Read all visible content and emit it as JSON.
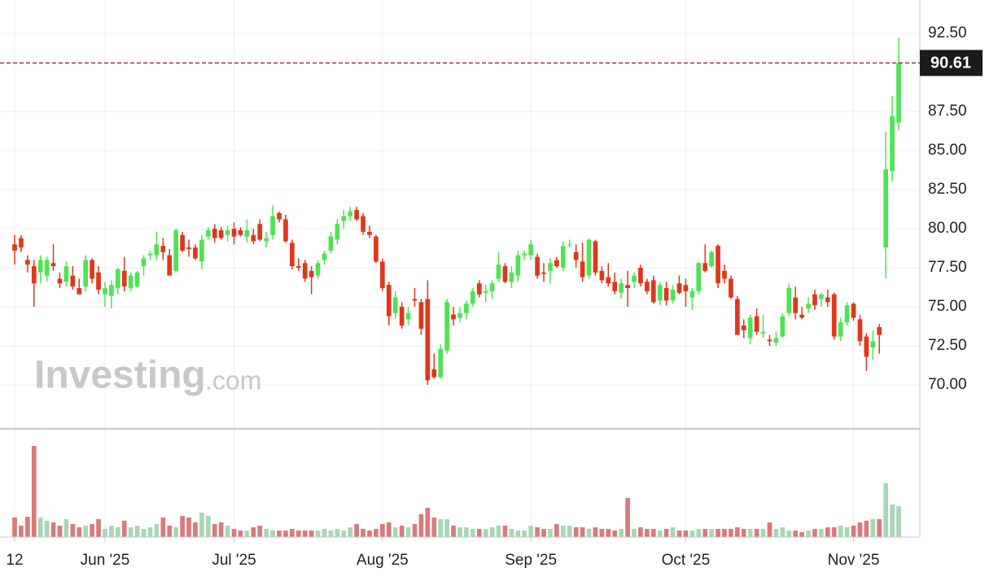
{
  "chart_data": {
    "type": "candlestick",
    "watermark": [
      "Investing",
      ".com"
    ],
    "open": [
      79.0,
      79.4,
      78.0,
      77.6,
      77.2,
      77.0,
      77.8,
      76.8,
      76.6,
      77.0,
      76.2,
      76.3,
      78.0,
      77.2,
      75.8,
      75.7,
      76.2,
      77.3,
      76.2,
      76.3,
      77.6,
      78.3,
      78.3,
      78.9,
      78.3,
      77.3,
      79.6,
      78.8,
      78.8,
      77.9,
      79.5,
      80.0,
      79.9,
      79.6,
      80.0,
      79.9,
      79.5,
      79.6,
      80.3,
      79.2,
      79.6,
      81.0,
      80.6,
      79.1,
      77.6,
      77.8,
      77.3,
      77.0,
      78.0,
      78.6,
      79.3,
      80.5,
      80.8,
      81.2,
      80.8,
      79.8,
      79.5,
      77.9,
      76.4,
      74.6,
      75.0,
      74.2,
      75.5,
      75.3,
      75.5,
      71.0,
      70.5,
      72.2,
      74.5,
      74.3,
      74.6,
      75.2,
      76.5,
      75.9,
      76.0,
      76.8,
      77.6,
      76.6,
      77.0,
      78.3,
      78.3,
      78.2,
      77.2,
      77.3,
      78.0,
      77.5,
      79.0,
      78.5,
      77.9,
      77.0,
      79.2,
      77.3,
      76.9,
      76.6,
      75.9,
      76.4,
      76.6,
      77.5,
      76.6,
      76.7,
      75.4,
      76.2,
      75.4,
      76.5,
      76.4,
      75.6,
      76.0,
      77.8,
      77.6,
      78.9,
      77.3,
      76.8,
      75.5,
      73.8,
      73.0,
      74.4,
      73.3,
      72.9,
      72.7,
      73.1,
      74.6,
      75.6,
      74.5,
      74.9,
      75.8,
      75.5,
      75.6,
      75.8,
      73.1,
      74.0,
      75.2,
      74.2,
      73.1,
      72.4,
      73.7,
      78.8,
      83.7,
      86.8
    ],
    "high": [
      79.6,
      79.6,
      78.3,
      78.0,
      78.3,
      78.2,
      79.0,
      77.2,
      77.9,
      77.6,
      76.8,
      78.3,
      78.1,
      77.6,
      76.6,
      76.7,
      77.5,
      78.2,
      77.2,
      77.3,
      78.3,
      78.6,
      79.8,
      79.4,
      78.7,
      80.0,
      79.8,
      79.3,
      79.0,
      79.6,
      80.1,
      80.3,
      80.1,
      80.2,
      80.4,
      80.1,
      80.6,
      80.0,
      80.6,
      79.8,
      81.5,
      81.1,
      80.9,
      79.3,
      78.1,
      78.0,
      77.6,
      78.0,
      78.6,
      79.8,
      80.6,
      81.2,
      81.4,
      81.4,
      81.0,
      80.2,
      79.6,
      78.1,
      76.6,
      76.0,
      75.3,
      75.0,
      76.2,
      75.5,
      76.7,
      72.0,
      72.6,
      75.5,
      75.0,
      75.0,
      75.4,
      76.2,
      76.7,
      76.4,
      76.7,
      78.5,
      77.8,
      77.6,
      78.6,
      78.6,
      79.3,
      78.4,
      77.8,
      78.1,
      78.2,
      79.2,
      79.3,
      79.0,
      79.1,
      79.4,
      79.3,
      77.6,
      77.8,
      77.2,
      76.8,
      77.3,
      77.2,
      77.7,
      76.8,
      77.0,
      76.6,
      76.6,
      76.4,
      77.0,
      76.8,
      76.2,
      77.9,
      79.0,
      78.6,
      79.0,
      77.7,
      77.0,
      75.7,
      74.2,
      74.5,
      74.9,
      74.5,
      73.2,
      73.4,
      74.6,
      76.5,
      76.3,
      75.0,
      75.6,
      76.1,
      75.9,
      76.1,
      75.9,
      74.3,
      75.3,
      75.3,
      74.5,
      73.3,
      73.5,
      73.9,
      86.2,
      88.5,
      92.2
    ],
    "low": [
      77.7,
      78.5,
      77.2,
      75.0,
      76.5,
      76.6,
      77.3,
      76.2,
      76.3,
      76.1,
      75.8,
      76.0,
      76.5,
      75.8,
      75.0,
      74.9,
      75.8,
      76.0,
      76.0,
      76.2,
      77.0,
      78.0,
      78.0,
      78.0,
      77.0,
      77.2,
      78.5,
      78.2,
      78.0,
      77.4,
      79.3,
      79.1,
      79.3,
      79.2,
      79.0,
      79.5,
      79.1,
      79.0,
      79.2,
      78.8,
      79.3,
      80.4,
      79.1,
      77.4,
      77.3,
      76.6,
      75.8,
      76.8,
      77.7,
      78.4,
      79.0,
      80.0,
      80.5,
      80.5,
      79.6,
      79.4,
      77.8,
      76.0,
      73.8,
      74.2,
      73.6,
      73.8,
      75.0,
      73.2,
      70.0,
      70.4,
      70.4,
      72.0,
      73.8,
      74.0,
      74.2,
      75.0,
      75.6,
      75.3,
      75.5,
      76.6,
      76.5,
      76.2,
      76.6,
      78.0,
      78.0,
      76.8,
      76.6,
      76.5,
      77.5,
      77.3,
      78.8,
      77.5,
      76.6,
      76.8,
      77.0,
      76.5,
      76.3,
      75.8,
      75.5,
      75.0,
      76.2,
      76.3,
      75.8,
      75.2,
      75.1,
      75.1,
      75.2,
      75.8,
      75.0,
      74.8,
      75.8,
      77.2,
      77.5,
      76.2,
      76.5,
      75.5,
      73.2,
      73.0,
      72.6,
      73.2,
      73.0,
      72.5,
      72.5,
      73.0,
      74.4,
      74.2,
      74.2,
      74.6,
      74.8,
      75.0,
      75.0,
      72.9,
      72.8,
      73.8,
      74.1,
      72.5,
      70.9,
      71.6,
      72.0,
      76.8,
      83.0,
      86.3
    ],
    "close": [
      78.6,
      78.8,
      77.7,
      76.5,
      78.0,
      78.0,
      77.6,
      76.5,
      77.6,
      76.3,
      75.8,
      78.0,
      76.8,
      76.1,
      76.2,
      76.4,
      77.4,
      76.3,
      77.0,
      77.2,
      78.1,
      78.4,
      79.0,
      78.5,
      77.0,
      79.9,
      78.6,
      78.7,
      78.1,
      79.3,
      79.9,
      79.4,
      79.4,
      79.9,
      79.5,
      79.6,
      79.9,
      79.2,
      79.3,
      79.4,
      80.8,
      80.6,
      79.2,
      77.6,
      77.5,
      76.8,
      76.9,
      77.8,
      78.4,
      79.5,
      80.3,
      80.8,
      81.1,
      80.6,
      79.8,
      79.6,
      77.9,
      76.2,
      74.4,
      75.6,
      73.8,
      74.6,
      75.4,
      73.6,
      70.3,
      70.5,
      72.3,
      75.3,
      74.2,
      74.6,
      75.2,
      76.0,
      75.8,
      76.0,
      76.5,
      77.7,
      76.6,
      77.2,
      78.3,
      78.4,
      79.0,
      77.0,
      77.1,
      77.8,
      77.6,
      78.9,
      79.0,
      78.0,
      76.9,
      79.3,
      77.2,
      76.7,
      76.5,
      76.0,
      76.5,
      76.2,
      77.0,
      76.5,
      76.0,
      75.3,
      76.4,
      75.4,
      76.1,
      75.9,
      76.0,
      76.0,
      77.8,
      77.3,
      78.5,
      76.5,
      76.8,
      75.6,
      73.2,
      73.5,
      74.3,
      73.4,
      73.4,
      72.8,
      73.0,
      74.4,
      76.2,
      74.6,
      74.3,
      75.2,
      75.1,
      75.8,
      75.3,
      73.1,
      74.0,
      75.1,
      74.3,
      72.8,
      71.8,
      72.8,
      73.2,
      83.8,
      87.2,
      90.61
    ],
    "volume": [
      2.4,
      1.4,
      2.5,
      11.2,
      2.4,
      2.0,
      1.8,
      1.4,
      2.2,
      1.6,
      1.2,
      1.4,
      1.6,
      2.2,
      1.0,
      1.4,
      1.2,
      2.0,
      1.2,
      1.4,
      1.0,
      1.2,
      1.6,
      2.4,
      1.4,
      1.2,
      2.6,
      2.4,
      1.8,
      3.0,
      2.6,
      1.6,
      1.8,
      1.4,
      1.0,
      0.8,
      0.8,
      1.2,
      1.4,
      1.0,
      0.8,
      0.8,
      0.8,
      1.0,
      0.8,
      0.8,
      0.8,
      0.8,
      1.0,
      0.8,
      1.0,
      0.8,
      1.2,
      1.6,
      1.0,
      0.8,
      1.0,
      1.6,
      1.8,
      1.2,
      1.4,
      1.2,
      1.6,
      2.8,
      3.6,
      2.4,
      2.2,
      2.2,
      1.4,
      1.2,
      1.2,
      1.0,
      1.0,
      1.0,
      1.2,
      1.4,
      1.4,
      1.0,
      0.8,
      0.8,
      1.4,
      1.2,
      1.0,
      1.0,
      1.6,
      1.4,
      1.4,
      1.2,
      1.2,
      1.0,
      1.2,
      1.0,
      1.0,
      0.8,
      1.0,
      4.8,
      1.0,
      1.2,
      1.0,
      1.0,
      0.8,
      1.0,
      1.2,
      0.8,
      0.8,
      0.8,
      1.0,
      1.0,
      1.0,
      1.0,
      1.0,
      1.0,
      1.2,
      1.0,
      1.0,
      1.0,
      1.0,
      1.8,
      1.0,
      1.2,
      0.8,
      0.8,
      0.6,
      0.8,
      1.0,
      1.0,
      1.2,
      1.2,
      1.4,
      1.2,
      1.4,
      1.8,
      2.0,
      2.2,
      2.2,
      6.6,
      4.0,
      3.8
    ],
    "up_color": "#4fe353",
    "down_color": "#e0371b",
    "up_volume_color": "#a7d7b6",
    "down_volume_color": "#d97a7a",
    "ylim": [
      67.19,
      94.64
    ],
    "yticks": [
      {
        "value": 70,
        "label": "70.00"
      },
      {
        "value": 72.5,
        "label": "72.50"
      },
      {
        "value": 75,
        "label": "75.00"
      },
      {
        "value": 77.5,
        "label": "77.50"
      },
      {
        "value": 80,
        "label": "80.00"
      },
      {
        "value": 82.5,
        "label": "82.50"
      },
      {
        "value": 85,
        "label": "85.00"
      },
      {
        "value": 87.5,
        "label": "87.50"
      },
      {
        "value": 92.5,
        "label": "92.50"
      }
    ],
    "volume_lim": [
      0,
      13.3
    ],
    "xticks": [
      {
        "value": 0,
        "label": "12"
      },
      {
        "value": 14,
        "label": "Jun '25"
      },
      {
        "value": 34,
        "label": "Jul '25"
      },
      {
        "value": 57,
        "label": "Aug '25"
      },
      {
        "value": 80,
        "label": "Sep '25"
      },
      {
        "value": 104,
        "label": "Oct '25"
      },
      {
        "value": 130,
        "label": "Nov '25"
      }
    ],
    "last_price": {
      "value": 90.61,
      "label": "90.61",
      "color": "#8b1a1a"
    },
    "grid": true
  }
}
